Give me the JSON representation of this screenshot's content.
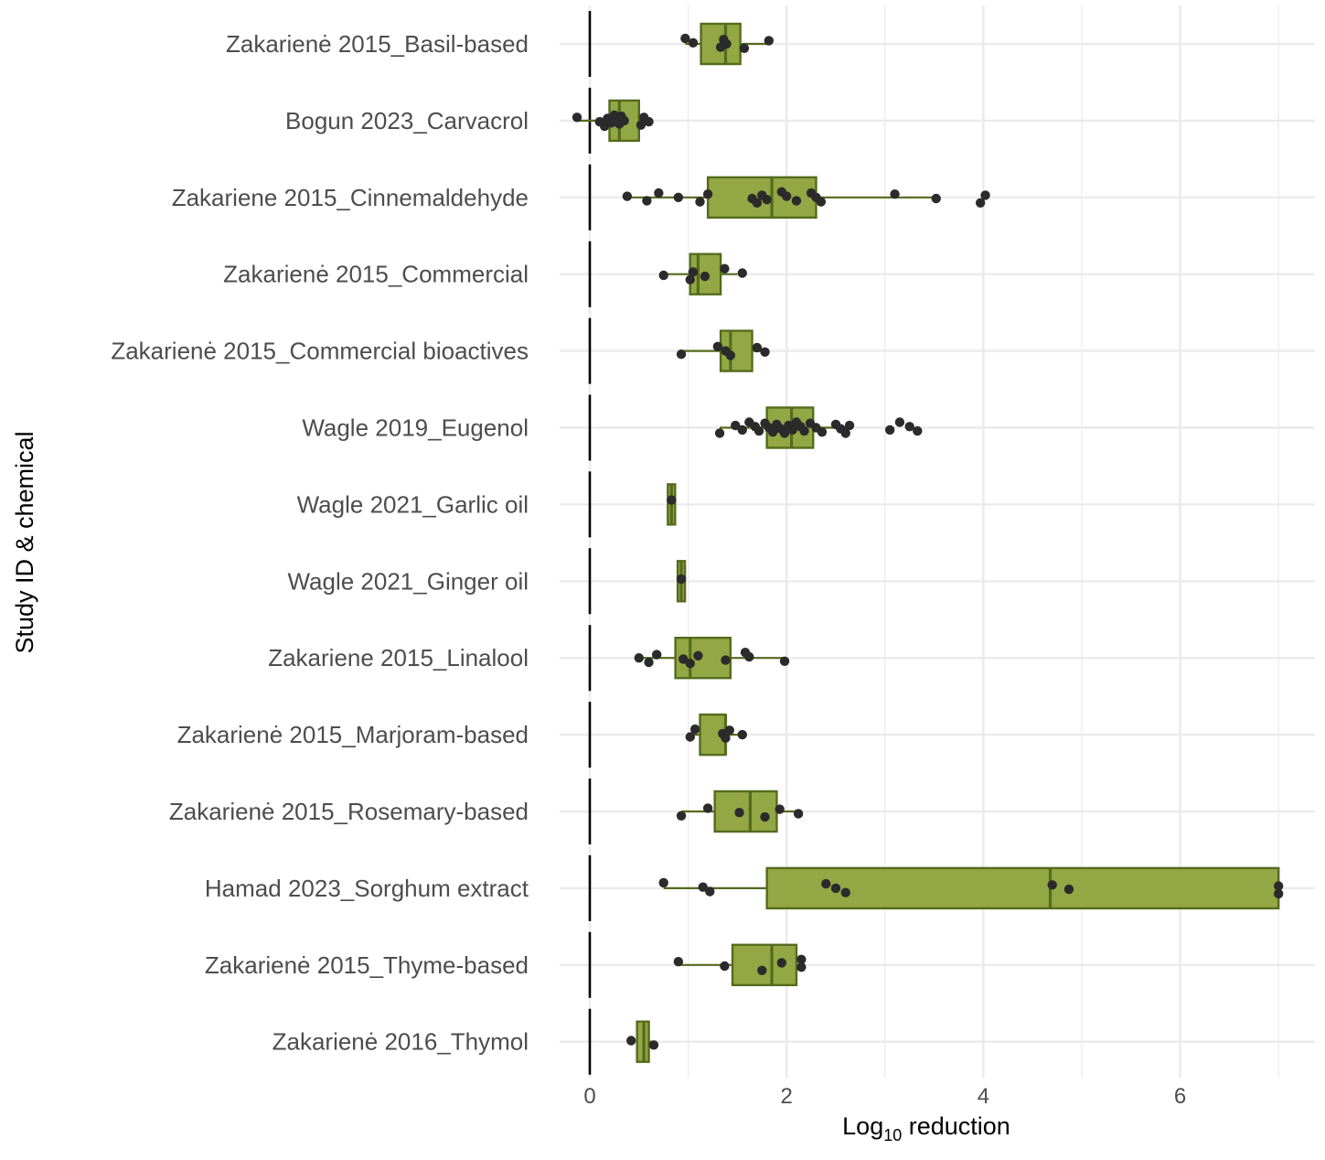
{
  "chart_data": {
    "type": "boxplot",
    "orientation": "horizontal",
    "xlabel": "Log10 reduction",
    "xlabel_parts": {
      "base": "Log",
      "sub": "10",
      "rest": " reduction"
    },
    "ylabel": "Study ID & chemical",
    "xlim": [
      -0.3,
      7.3
    ],
    "x_ticks": [
      0,
      2,
      4,
      6
    ],
    "x_tick_labels": [
      "0",
      "2",
      "4",
      "6"
    ],
    "grid": true,
    "reference_line_x": 0,
    "colors": {
      "box_fill": "#93a844",
      "box_stroke": "#556b1d",
      "point": "#2b2b2b",
      "reference_line": "#000000"
    },
    "categories": [
      "Zakarienė 2015_Basil-based",
      "Bogun 2023_Carvacrol",
      "Zakariene 2015_Cinnemaldehyde",
      "Zakarienė 2015_Commercial",
      "Zakarienė 2015_Commercial bioactives",
      "Wagle 2019_Eugenol",
      "Wagle 2021_Garlic oil",
      "Wagle 2021_Ginger oil",
      "Zakariene 2015_Linalool",
      "Zakarienė 2015_Marjoram-based",
      "Zakarienė 2015_Rosemary-based",
      "Hamad 2023_Sorghum extract",
      "Zakarienė 2015_Thyme-based",
      "Zakarienė 2016_Thymol"
    ],
    "boxes": [
      {
        "whisker_low": 0.97,
        "q1": 1.13,
        "median": 1.38,
        "q3": 1.53,
        "whisker_high": 1.83,
        "points": [
          0.97,
          1.05,
          1.33,
          1.36,
          1.39,
          1.57,
          1.82
        ]
      },
      {
        "whisker_low": -0.13,
        "q1": 0.2,
        "median": 0.3,
        "q3": 0.5,
        "whisker_high": 0.6,
        "points": [
          -0.13,
          0.1,
          0.15,
          0.18,
          0.22,
          0.25,
          0.28,
          0.3,
          0.32,
          0.35,
          0.52,
          0.55,
          0.6
        ]
      },
      {
        "whisker_low": 0.38,
        "q1": 1.2,
        "median": 1.85,
        "q3": 2.3,
        "whisker_high": 3.52,
        "points": [
          0.38,
          0.58,
          0.7,
          0.9,
          1.12,
          1.2,
          1.65,
          1.7,
          1.75,
          1.8,
          1.95,
          2.0,
          2.1,
          2.25,
          2.3,
          2.35,
          3.1,
          3.52,
          3.97,
          4.02
        ]
      },
      {
        "whisker_low": 0.72,
        "q1": 1.02,
        "median": 1.1,
        "q3": 1.33,
        "whisker_high": 1.5,
        "points": [
          0.75,
          1.02,
          1.05,
          1.17,
          1.37,
          1.55
        ]
      },
      {
        "whisker_low": 0.93,
        "q1": 1.33,
        "median": 1.43,
        "q3": 1.65,
        "whisker_high": 1.78,
        "points": [
          0.93,
          1.3,
          1.38,
          1.43,
          1.7,
          1.78
        ]
      },
      {
        "whisker_low": 1.32,
        "q1": 1.8,
        "median": 2.05,
        "q3": 2.27,
        "whisker_high": 2.65,
        "points": [
          1.32,
          1.48,
          1.55,
          1.62,
          1.68,
          1.72,
          1.78,
          1.82,
          1.86,
          1.9,
          1.94,
          1.98,
          2.02,
          2.06,
          2.1,
          2.14,
          2.18,
          2.24,
          2.3,
          2.36,
          2.5,
          2.55,
          2.6,
          2.64,
          3.05,
          3.15,
          3.25,
          3.33
        ]
      },
      {
        "whisker_low": 0.83,
        "q1": 0.83,
        "median": 0.83,
        "q3": 0.83,
        "whisker_high": 0.83,
        "points": [
          0.83
        ]
      },
      {
        "whisker_low": 0.93,
        "q1": 0.93,
        "median": 0.93,
        "q3": 0.93,
        "whisker_high": 0.93,
        "points": [
          0.93
        ]
      },
      {
        "whisker_low": 0.5,
        "q1": 0.87,
        "median": 1.02,
        "q3": 1.43,
        "whisker_high": 1.98,
        "points": [
          0.5,
          0.6,
          0.68,
          0.95,
          1.02,
          1.1,
          1.38,
          1.58,
          1.62,
          1.98
        ]
      },
      {
        "whisker_low": 1.0,
        "q1": 1.12,
        "median": 1.38,
        "q3": 1.38,
        "whisker_high": 1.55,
        "points": [
          1.02,
          1.07,
          1.35,
          1.38,
          1.42,
          1.55
        ]
      },
      {
        "whisker_low": 0.93,
        "q1": 1.27,
        "median": 1.63,
        "q3": 1.9,
        "whisker_high": 2.12,
        "points": [
          0.93,
          1.2,
          1.52,
          1.78,
          1.93,
          2.12
        ]
      },
      {
        "whisker_low": 0.75,
        "q1": 1.8,
        "median": 4.68,
        "q3": 7.0,
        "whisker_high": 7.0,
        "points": [
          0.75,
          1.15,
          1.22,
          2.4,
          2.5,
          2.6,
          4.7,
          4.87,
          7.0,
          7.0
        ]
      },
      {
        "whisker_low": 0.9,
        "q1": 1.45,
        "median": 1.85,
        "q3": 2.1,
        "whisker_high": 2.15,
        "points": [
          0.9,
          1.37,
          1.75,
          1.95,
          2.15,
          2.15
        ]
      },
      {
        "whisker_low": 0.48,
        "q1": 0.48,
        "median": 0.55,
        "q3": 0.6,
        "whisker_high": 0.65,
        "points": [
          0.42,
          0.65
        ]
      }
    ]
  }
}
